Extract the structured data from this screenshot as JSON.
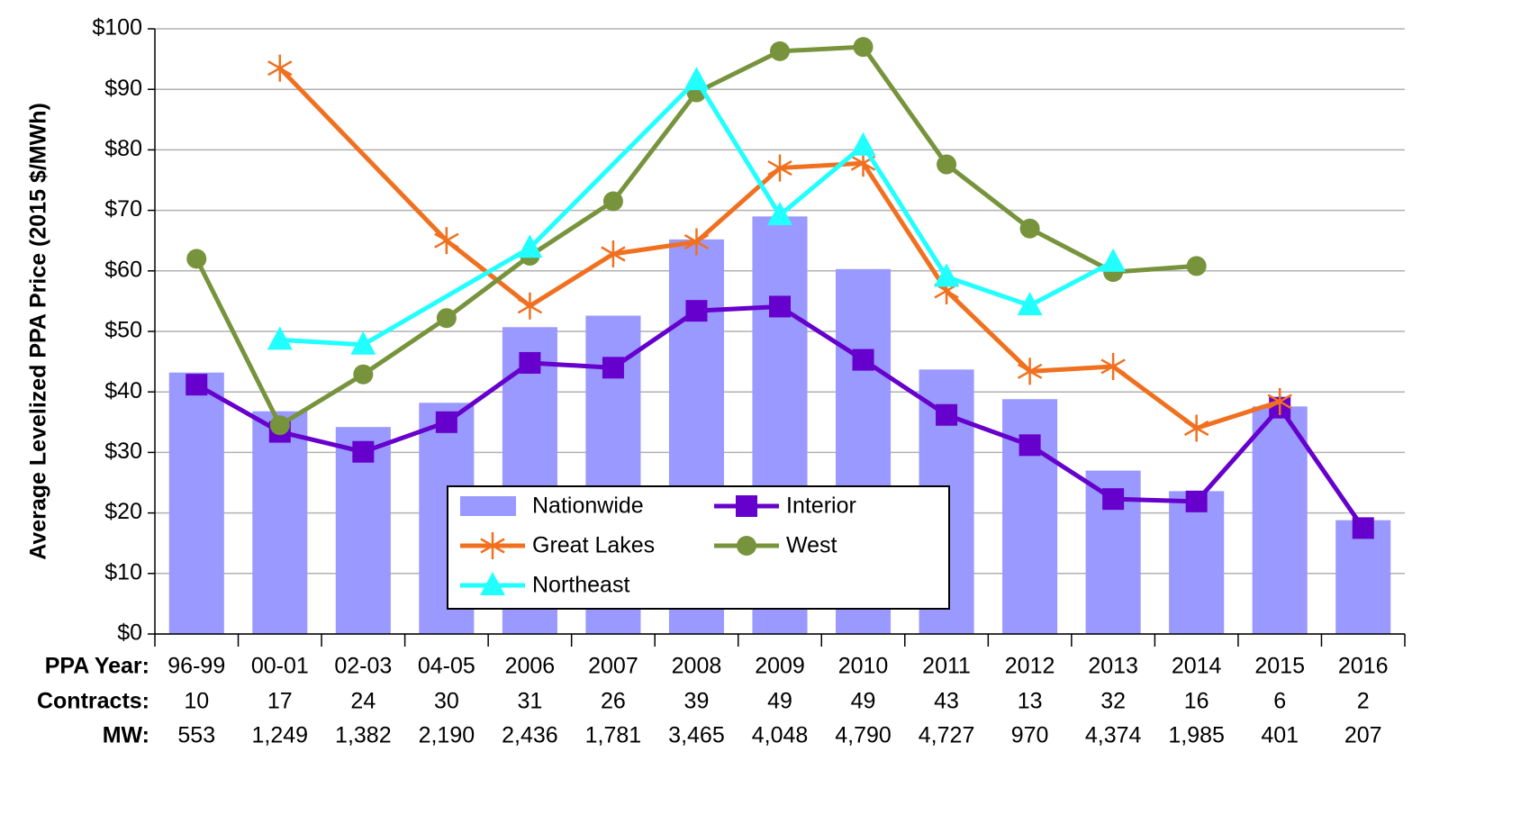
{
  "chart_data": {
    "type": "combo",
    "y_label": "Average Levelized PPA Price (2015 $/MWh)",
    "x_label": "PPA Year:",
    "categories": [
      "96-99",
      "00-01",
      "02-03",
      "04-05",
      "2006",
      "2007",
      "2008",
      "2009",
      "2010",
      "2011",
      "2012",
      "2013",
      "2014",
      "2015",
      "2016"
    ],
    "series": [
      {
        "name": "Nationwide",
        "type": "bar",
        "color": "#9999ff",
        "values": [
          43.2,
          36.8,
          34.2,
          38.2,
          50.7,
          52.6,
          65.2,
          69.0,
          60.3,
          43.7,
          38.8,
          27.0,
          23.6,
          37.6,
          18.8
        ]
      },
      {
        "name": "Interior",
        "type": "line",
        "marker": "square",
        "color": "#6600cc",
        "values": [
          41.2,
          33.4,
          30.1,
          35.0,
          44.8,
          44.0,
          53.4,
          54.1,
          45.3,
          36.2,
          31.2,
          22.3,
          21.9,
          37.4,
          17.5
        ]
      },
      {
        "name": "Great Lakes",
        "type": "line",
        "marker": "asterisk",
        "color": "#f07020",
        "values": [
          null,
          93.5,
          null,
          65.0,
          54.2,
          62.8,
          64.8,
          77.0,
          77.8,
          56.7,
          43.4,
          44.2,
          34.0,
          38.4,
          null
        ]
      },
      {
        "name": "West",
        "type": "line",
        "marker": "circle",
        "color": "#77933c",
        "values": [
          62.0,
          34.5,
          42.9,
          52.2,
          62.5,
          71.5,
          89.5,
          96.3,
          97.0,
          77.6,
          67.0,
          59.8,
          60.8,
          null,
          null
        ]
      },
      {
        "name": "Northeast",
        "type": "line",
        "marker": "triangle",
        "color": "#22ffff",
        "values": [
          null,
          48.6,
          47.8,
          null,
          63.8,
          null,
          91.5,
          69.2,
          80.7,
          59.0,
          54.3,
          61.5,
          null,
          null,
          null
        ]
      }
    ],
    "ylim": [
      0,
      100
    ],
    "yticks": [
      {
        "value": 0,
        "label": "$0"
      },
      {
        "value": 10,
        "label": "$10"
      },
      {
        "value": 20,
        "label": "$20"
      },
      {
        "value": 30,
        "label": "$30"
      },
      {
        "value": 40,
        "label": "$40"
      },
      {
        "value": 50,
        "label": "$50"
      },
      {
        "value": 60,
        "label": "$60"
      },
      {
        "value": 70,
        "label": "$70"
      },
      {
        "value": 80,
        "label": "$80"
      },
      {
        "value": 90,
        "label": "$90"
      },
      {
        "value": 100,
        "label": "$100"
      }
    ],
    "grid": true,
    "table": [
      {
        "label": "Contracts:",
        "cells": [
          10,
          17,
          24,
          30,
          31,
          26,
          39,
          49,
          49,
          43,
          13,
          32,
          16,
          6,
          2
        ]
      },
      {
        "label": "MW:",
        "cells": [
          "553",
          "1,249",
          "1,382",
          "2,190",
          "2,436",
          "1,781",
          "3,465",
          "4,048",
          "4,790",
          "4,727",
          "970",
          "4,374",
          "1,985",
          "401",
          "207"
        ]
      }
    ]
  }
}
